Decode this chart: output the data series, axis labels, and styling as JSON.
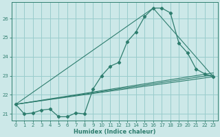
{
  "xlabel": "Humidex (Indice chaleur)",
  "bg_color": "#cce8e8",
  "grid_color": "#99cccc",
  "line_color": "#2e7d6e",
  "xlim": [
    -0.5,
    23.5
  ],
  "ylim": [
    20.65,
    26.85
  ],
  "xticks": [
    0,
    1,
    2,
    3,
    4,
    5,
    6,
    7,
    8,
    9,
    10,
    11,
    12,
    13,
    14,
    15,
    16,
    17,
    18,
    19,
    20,
    21,
    22,
    23
  ],
  "yticks": [
    21,
    22,
    23,
    24,
    25,
    26
  ],
  "curve_x": [
    0,
    1,
    2,
    3,
    4,
    5,
    6,
    7,
    8,
    9,
    10,
    11,
    12,
    13,
    14,
    15,
    16,
    17,
    18,
    19,
    20,
    21,
    22,
    23
  ],
  "curve_y": [
    21.5,
    21.0,
    21.05,
    21.2,
    21.25,
    20.85,
    20.85,
    21.05,
    21.0,
    22.3,
    23.0,
    23.5,
    23.7,
    24.8,
    25.3,
    26.1,
    26.55,
    26.55,
    26.3,
    24.7,
    24.2,
    23.35,
    23.1,
    22.95
  ],
  "line1_x": [
    0,
    23
  ],
  "line1_y": [
    21.5,
    22.95
  ],
  "line2_x": [
    0,
    23
  ],
  "line2_y": [
    21.5,
    23.05
  ],
  "line3_x": [
    0,
    23
  ],
  "line3_y": [
    21.5,
    23.15
  ],
  "line4_x": [
    0,
    16,
    23
  ],
  "line4_y": [
    21.5,
    26.55,
    22.95
  ]
}
